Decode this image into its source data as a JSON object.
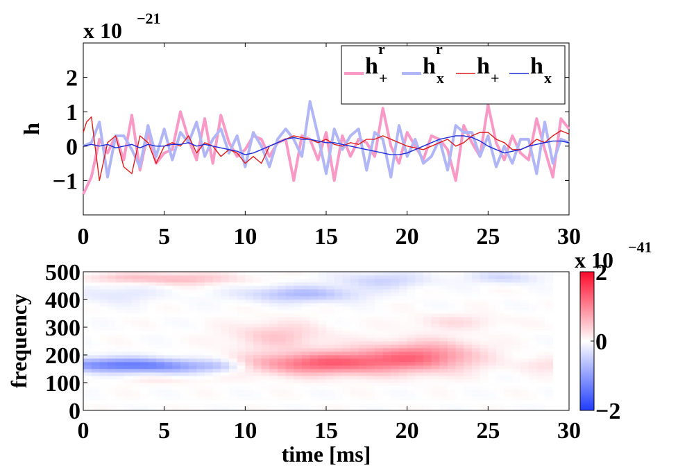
{
  "chart_data": [
    {
      "type": "line",
      "name": "strain-time-series",
      "ylabel": "h",
      "y_scale_label": {
        "prefix": "x 10",
        "exponent": "−21"
      },
      "xlim": [
        0,
        30
      ],
      "ylim": [
        -2,
        3
      ],
      "xticks": [
        0,
        5,
        10,
        15,
        20,
        25,
        30
      ],
      "yticks": [
        -1,
        0,
        1,
        2
      ],
      "ytick_labels": [
        "−1",
        "0",
        "1",
        "2"
      ],
      "legend_position": "top-right",
      "series": [
        {
          "name": "h+r",
          "legend_base": "h",
          "legend_sup": "r",
          "legend_sub": "+",
          "color": "#f99ac6",
          "width": 4,
          "x": [
            0,
            0.5,
            1,
            1.5,
            2,
            2.5,
            3,
            3.5,
            4,
            4.5,
            5,
            5.5,
            6,
            6.5,
            7,
            7.5,
            8,
            8.5,
            9,
            9.5,
            10,
            10.5,
            11,
            11.5,
            12,
            12.5,
            13,
            13.5,
            14,
            14.5,
            15,
            15.5,
            16,
            16.5,
            17,
            17.5,
            18,
            18.5,
            19,
            19.5,
            20,
            20.5,
            21,
            21.5,
            22,
            22.5,
            23,
            23.5,
            24,
            24.5,
            25,
            25.5,
            26,
            26.5,
            27,
            27.5,
            28,
            28.5,
            29,
            29.5,
            30
          ],
          "values": [
            -1.4,
            -0.9,
            0.2,
            -0.2,
            0.3,
            -0.4,
            0.9,
            -0.7,
            0.4,
            -0.5,
            -0.2,
            -0.1,
            1.0,
            0.2,
            -0.4,
            0.8,
            -0.5,
            0.9,
            0.1,
            -0.3,
            -0.1,
            0.3,
            0.2,
            -0.3,
            0.1,
            0.2,
            -1.0,
            0.3,
            0.2,
            -0.4,
            0.4,
            -1.0,
            0.3,
            -0.3,
            0.2,
            0.1,
            -0.3,
            1.1,
            0.0,
            -0.5,
            0.4,
            0.0,
            -0.4,
            0.3,
            0.2,
            -0.1,
            -1.0,
            0.6,
            0.1,
            -0.3,
            1.2,
            0.1,
            -0.4,
            0.3,
            -0.2,
            -0.4,
            0.8,
            -0.1,
            -0.9,
            0.8,
            0.5
          ]
        },
        {
          "name": "hxr",
          "legend_base": "h",
          "legend_sup": "r",
          "legend_sub": "x",
          "color": "#b0b6f6",
          "width": 4,
          "x": [
            0,
            0.5,
            1,
            1.5,
            2,
            2.5,
            3,
            3.5,
            4,
            4.5,
            5,
            5.5,
            6,
            6.5,
            7,
            7.5,
            8,
            8.5,
            9,
            9.5,
            10,
            10.5,
            11,
            11.5,
            12,
            12.5,
            13,
            13.5,
            14,
            14.5,
            15,
            15.5,
            16,
            16.5,
            17,
            17.5,
            18,
            18.5,
            19,
            19.5,
            20,
            20.5,
            21,
            21.5,
            22,
            22.5,
            23,
            23.5,
            24,
            24.5,
            25,
            25.5,
            26,
            26.5,
            27,
            27.5,
            28,
            28.5,
            29,
            29.5,
            30
          ],
          "values": [
            0.0,
            0.1,
            0.7,
            -0.9,
            0.3,
            0.3,
            -0.1,
            -0.6,
            0.6,
            -0.3,
            0.5,
            -0.4,
            0.4,
            0.1,
            0.7,
            -0.3,
            0.2,
            0.5,
            -0.2,
            0.3,
            -0.6,
            0.4,
            0.0,
            -0.6,
            0.2,
            0.5,
            0.2,
            -0.3,
            1.3,
            0.3,
            -0.8,
            0.5,
            -0.1,
            0.3,
            0.5,
            -0.7,
            0.4,
            0.2,
            -0.9,
            0.6,
            -0.3,
            0.2,
            -0.5,
            -0.3,
            0.2,
            -0.7,
            0.6,
            0.4,
            0.4,
            -0.3,
            0.3,
            -0.6,
            0.0,
            -0.5,
            0.2,
            0.2,
            -0.8,
            0.7,
            -0.5,
            0.2,
            0.1
          ]
        },
        {
          "name": "h+",
          "legend_base": "h",
          "legend_sup": "",
          "legend_sub": "+",
          "color": "#dd1c1c",
          "width": 1.4,
          "x": [
            0,
            0.2,
            0.5,
            0.7,
            1,
            1.5,
            2,
            2.5,
            3,
            3.5,
            4,
            4.5,
            5,
            5.5,
            6,
            6.5,
            7,
            7.5,
            8,
            8.5,
            9,
            9.5,
            10,
            10.5,
            11,
            11.5,
            12,
            12.5,
            13,
            13.5,
            14,
            14.5,
            15,
            15.5,
            16,
            16.5,
            17,
            17.5,
            18,
            18.5,
            19,
            19.5,
            20,
            20.5,
            21,
            21.5,
            22,
            22.5,
            23,
            23.5,
            24,
            24.5,
            25,
            25.5,
            26,
            26.5,
            27,
            27.5,
            28,
            28.5,
            29,
            29.5,
            30
          ],
          "values": [
            0.4,
            0.7,
            0.85,
            0.1,
            -1.0,
            0.1,
            0.3,
            -0.6,
            -0.8,
            0.3,
            0.1,
            -0.5,
            0.0,
            0.1,
            0.0,
            0.3,
            -0.2,
            0.1,
            0.0,
            -0.3,
            -0.1,
            -0.2,
            -0.5,
            -0.3,
            -0.5,
            0.0,
            0.1,
            0.2,
            0.3,
            0.25,
            0.2,
            0.1,
            0.2,
            0.05,
            0.0,
            0.1,
            0.05,
            0.2,
            0.2,
            0.3,
            0.2,
            0.1,
            0.0,
            -0.05,
            -0.1,
            0.0,
            0.1,
            0.2,
            0.0,
            0.1,
            0.3,
            0.4,
            0.4,
            0.2,
            0.1,
            -0.1,
            -0.1,
            0.0,
            0.2,
            0.1,
            0.3,
            0.45,
            0.35
          ]
        },
        {
          "name": "hx",
          "legend_base": "h",
          "legend_sup": "",
          "legend_sub": "x",
          "color": "#1c2cd6",
          "width": 1.4,
          "x": [
            0,
            0.5,
            1,
            1.5,
            2,
            2.5,
            3,
            3.5,
            4,
            4.5,
            5,
            5.5,
            6,
            6.5,
            7,
            7.5,
            8,
            8.5,
            9,
            9.5,
            10,
            10.5,
            11,
            11.5,
            12,
            12.5,
            13,
            13.5,
            14,
            14.5,
            15,
            15.5,
            16,
            16.5,
            17,
            17.5,
            18,
            18.5,
            19,
            19.5,
            20,
            20.5,
            21,
            21.5,
            22,
            22.5,
            23,
            23.5,
            24,
            24.5,
            25,
            25.5,
            26,
            26.5,
            27,
            27.5,
            28,
            28.5,
            29,
            29.5,
            30
          ],
          "values": [
            0.0,
            0.05,
            0.0,
            0.05,
            -0.05,
            0.0,
            0.05,
            -0.05,
            0.05,
            0.0,
            0.0,
            0.05,
            0.05,
            0.1,
            0.0,
            0.05,
            0.0,
            -0.05,
            -0.1,
            -0.15,
            -0.25,
            -0.2,
            -0.1,
            0.0,
            0.1,
            0.2,
            0.25,
            0.2,
            0.2,
            0.15,
            0.1,
            0.1,
            0.05,
            0.0,
            -0.05,
            -0.1,
            -0.15,
            -0.2,
            -0.25,
            -0.25,
            -0.2,
            -0.1,
            0.0,
            0.1,
            0.2,
            0.25,
            0.3,
            0.3,
            0.25,
            0.15,
            0.0,
            -0.1,
            -0.2,
            -0.15,
            -0.1,
            0.0,
            0.05,
            0.1,
            0.15,
            0.15,
            0.1
          ]
        }
      ]
    },
    {
      "type": "heatmap",
      "name": "spectrogram",
      "xlabel": "time [ms]",
      "ylabel": "frequency",
      "xlim": [
        0,
        30
      ],
      "ylim": [
        0,
        500
      ],
      "xticks": [
        0,
        5,
        10,
        15,
        20,
        25,
        30
      ],
      "yticks": [
        0,
        100,
        200,
        300,
        400,
        500
      ],
      "colorbar": {
        "range": [
          -2,
          2
        ],
        "ticks": [
          -2,
          0,
          2
        ],
        "tick_labels": [
          "−2",
          "0",
          "2"
        ],
        "scale_label": {
          "prefix": "x 10",
          "exponent": "−41"
        },
        "colors": {
          "low": "#1f3cff",
          "mid": "#ffffff",
          "high": "#ff0a2a"
        }
      },
      "x_extent": [
        0,
        29
      ],
      "features": [
        {
          "t": 1.5,
          "f": 165,
          "st": 2.5,
          "sf": 18,
          "v": -1.2
        },
        {
          "t": 5.5,
          "f": 160,
          "st": 2.0,
          "sf": 18,
          "v": -0.8
        },
        {
          "t": 8.5,
          "f": 160,
          "st": 1.0,
          "sf": 15,
          "v": -0.4
        },
        {
          "t": 14.5,
          "f": 170,
          "st": 3.0,
          "sf": 28,
          "v": 1.2
        },
        {
          "t": 19.5,
          "f": 190,
          "st": 2.5,
          "sf": 35,
          "v": 0.8
        },
        {
          "t": 12.0,
          "f": 270,
          "st": 2.0,
          "sf": 35,
          "v": 0.45
        },
        {
          "t": 22.0,
          "f": 200,
          "st": 2.0,
          "sf": 40,
          "v": 0.5
        },
        {
          "t": 6.0,
          "f": 475,
          "st": 2.5,
          "sf": 15,
          "v": 0.55
        },
        {
          "t": 2.0,
          "f": 480,
          "st": 1.5,
          "sf": 12,
          "v": 0.3
        },
        {
          "t": 13.5,
          "f": 420,
          "st": 2.5,
          "sf": 20,
          "v": -0.7
        },
        {
          "t": 18.5,
          "f": 470,
          "st": 2.0,
          "sf": 20,
          "v": -0.45
        },
        {
          "t": 26.0,
          "f": 480,
          "st": 1.5,
          "sf": 15,
          "v": -0.4
        },
        {
          "t": 2.0,
          "f": 420,
          "st": 2.0,
          "sf": 25,
          "v": -0.25
        },
        {
          "t": 23.0,
          "f": 320,
          "st": 2.0,
          "sf": 20,
          "v": 0.25
        },
        {
          "t": 28.5,
          "f": 165,
          "st": 1.2,
          "sf": 20,
          "v": 0.25
        },
        {
          "t": 5.0,
          "f": 110,
          "st": 2.0,
          "sf": 10,
          "v": 0.15
        }
      ]
    }
  ]
}
